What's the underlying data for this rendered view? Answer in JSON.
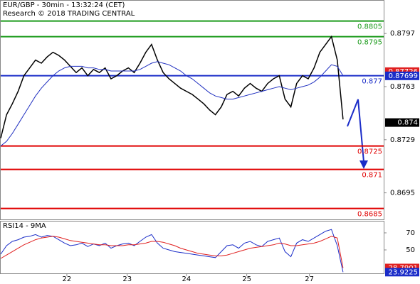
{
  "chart_data": [
    {
      "type": "line",
      "title": "EUR/GBP - 30min - 13:32:24 (CET)",
      "subtitle": "Research © 2018 TRADING CENTRAL",
      "x": [
        0,
        1,
        2,
        3,
        4,
        5,
        6,
        7,
        8,
        9,
        10,
        11,
        12,
        13,
        14,
        15,
        16,
        17,
        18,
        19,
        20,
        21,
        22,
        23,
        24,
        25,
        26,
        27,
        28,
        29,
        30,
        31,
        32,
        33,
        34,
        35,
        36,
        37,
        38,
        39,
        40,
        41,
        42,
        43,
        44,
        45,
        46,
        47,
        48,
        49,
        50,
        51,
        52,
        53,
        54,
        55,
        56,
        57,
        58,
        59
      ],
      "xlim": [
        0,
        66
      ],
      "ylim": [
        0.8678,
        0.8818
      ],
      "yticks": [
        0.8797,
        0.8763,
        0.8729,
        0.8695
      ],
      "series": [
        {
          "color": "#000000",
          "values": [
            0.873,
            0.8745,
            0.8752,
            0.876,
            0.877,
            0.8775,
            0.878,
            0.8778,
            0.8782,
            0.8785,
            0.8783,
            0.878,
            0.8776,
            0.8772,
            0.8775,
            0.877,
            0.8774,
            0.8772,
            0.8775,
            0.8768,
            0.877,
            0.8773,
            0.8775,
            0.8772,
            0.8778,
            0.8785,
            0.879,
            0.878,
            0.8772,
            0.8768,
            0.8765,
            0.8762,
            0.876,
            0.8758,
            0.8755,
            0.8752,
            0.8748,
            0.8745,
            0.875,
            0.8758,
            0.876,
            0.8757,
            0.8762,
            0.8765,
            0.8762,
            0.876,
            0.8765,
            0.8768,
            0.877,
            0.8755,
            0.875,
            0.8765,
            0.877,
            0.8768,
            0.8775,
            0.8785,
            0.879,
            0.8795,
            0.878,
            0.8742
          ]
        },
        {
          "color": "#2030c0",
          "values": [
            0.8725,
            0.8728,
            0.8733,
            0.8739,
            0.8745,
            0.8751,
            0.8757,
            0.8762,
            0.8766,
            0.877,
            0.8773,
            0.8775,
            0.8776,
            0.8776,
            0.8776,
            0.8775,
            0.8775,
            0.8774,
            0.8774,
            0.8773,
            0.8773,
            0.8773,
            0.8773,
            0.8773,
            0.8774,
            0.8776,
            0.8778,
            0.8779,
            0.8778,
            0.8777,
            0.8775,
            0.8773,
            0.877,
            0.8768,
            0.8765,
            0.8762,
            0.8759,
            0.8757,
            0.8756,
            0.8755,
            0.8755,
            0.8756,
            0.8757,
            0.8758,
            0.8759,
            0.876,
            0.8761,
            0.8762,
            0.8763,
            0.8762,
            0.8761,
            0.8762,
            0.8763,
            0.8764,
            0.8766,
            0.8769,
            0.8773,
            0.8777,
            0.8776,
            0.877
          ]
        }
      ],
      "levels": [
        {
          "value": 0.8805,
          "color": "#1a9a1a"
        },
        {
          "value": 0.8795,
          "color": "#1a9a1a"
        },
        {
          "value": 0.877,
          "color": "#1a2cc8"
        },
        {
          "value": 0.8725,
          "color": "#e00000"
        },
        {
          "value": 0.871,
          "color": "#e00000"
        },
        {
          "value": 0.8685,
          "color": "#e00000"
        }
      ],
      "markers": [
        {
          "value": 0.87726,
          "color": "#e02020"
        },
        {
          "value": 0.87699,
          "color": "#1a2cc8"
        },
        {
          "value": 0.874,
          "color": "#000000"
        }
      ]
    },
    {
      "type": "line",
      "title": "RSI14 - 9MA",
      "x": [
        0,
        1,
        2,
        3,
        4,
        5,
        6,
        7,
        8,
        9,
        10,
        11,
        12,
        13,
        14,
        15,
        16,
        17,
        18,
        19,
        20,
        21,
        22,
        23,
        24,
        25,
        26,
        27,
        28,
        29,
        30,
        31,
        32,
        33,
        34,
        35,
        36,
        37,
        38,
        39,
        40,
        41,
        42,
        43,
        44,
        45,
        46,
        47,
        48,
        49,
        50,
        51,
        52,
        53,
        54,
        55,
        56,
        57,
        58,
        59
      ],
      "xlim": [
        0,
        66
      ],
      "xticks": [
        {
          "value": 11.4,
          "label": "22"
        },
        {
          "value": 21.8,
          "label": "23"
        },
        {
          "value": 32,
          "label": "24"
        },
        {
          "value": 42.4,
          "label": "25"
        },
        {
          "value": 53.2,
          "label": "27"
        }
      ],
      "ylim": [
        22.5,
        83.3
      ],
      "yticks": [
        70,
        50
      ],
      "series": [
        {
          "color": "#1a2cc8",
          "values": [
            45,
            55,
            60,
            62,
            65,
            66,
            68,
            65,
            67,
            66,
            62,
            58,
            55,
            56,
            58,
            54,
            57,
            55,
            58,
            52,
            55,
            57,
            58,
            55,
            60,
            65,
            68,
            58,
            52,
            50,
            48,
            47,
            46,
            45,
            44,
            43,
            42,
            41,
            48,
            55,
            56,
            52,
            58,
            60,
            56,
            54,
            60,
            62,
            64,
            48,
            42,
            58,
            62,
            60,
            64,
            68,
            72,
            74,
            55,
            23.9225
          ]
        },
        {
          "color": "#e02020",
          "values": [
            40,
            44,
            48,
            52,
            56,
            59,
            62,
            64,
            65,
            66,
            65,
            63,
            61,
            60,
            59,
            58,
            57,
            56,
            56,
            55,
            55,
            55,
            56,
            56,
            57,
            58,
            60,
            60,
            59,
            57,
            55,
            52,
            50,
            48,
            46,
            45,
            44,
            43,
            43,
            44,
            46,
            48,
            50,
            52,
            53,
            54,
            55,
            56,
            58,
            57,
            55,
            55,
            56,
            57,
            58,
            60,
            63,
            66,
            64,
            28.7901
          ]
        }
      ],
      "markers": [
        {
          "value": 28.7901,
          "color": "#e02020"
        },
        {
          "value": 23.9225,
          "color": "#1a2cc8"
        }
      ]
    }
  ]
}
